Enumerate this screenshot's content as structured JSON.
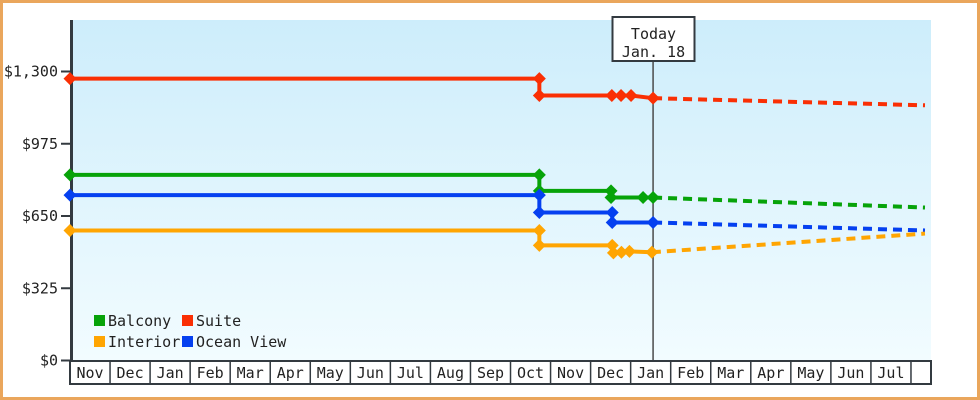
{
  "colors": {
    "frame_border": "#eaa65c",
    "plot_bg_top": "#cdedfb",
    "plot_bg_bottom": "#f2fcff",
    "axis": "#333a40",
    "text": "#222222",
    "today_line": "#4a4a4a",
    "box_bg": "#ffffff"
  },
  "chart_data": {
    "type": "line",
    "title": "",
    "grid": false,
    "y_axis": {
      "ticks": [
        {
          "label": "$0",
          "value": 0
        },
        {
          "label": "$325",
          "value": 325
        },
        {
          "label": "$650",
          "value": 650
        },
        {
          "label": "$975",
          "value": 975
        },
        {
          "label": "$1,300",
          "value": 1300
        }
      ],
      "range": [
        0,
        1530
      ]
    },
    "x_axis": {
      "unit": "month",
      "labels": [
        "Nov",
        "Dec",
        "Jan",
        "Feb",
        "Mar",
        "Apr",
        "May",
        "Jun",
        "Jul",
        "Aug",
        "Sep",
        "Oct",
        "Nov",
        "Dec",
        "Jan",
        "Feb",
        "Mar",
        "Apr",
        "May",
        "Jun",
        "Jul"
      ]
    },
    "today": {
      "line1": "Today",
      "line2": "Jan. 18",
      "month_offset": 14.56
    },
    "legend": {
      "position": "bottom-left",
      "rows": [
        [
          "Balcony",
          "Suite"
        ],
        [
          "Interior",
          "Ocean View"
        ]
      ]
    },
    "series": [
      {
        "name": "Suite",
        "color": "#fa2f04",
        "history": [
          [
            0,
            1268
          ],
          [
            11.72,
            1268
          ],
          [
            11.72,
            1192
          ],
          [
            13.53,
            1192
          ],
          [
            13.76,
            1192
          ],
          [
            14.01,
            1192
          ],
          [
            14.56,
            1180
          ]
        ],
        "forecast": [
          [
            14.56,
            1180
          ],
          [
            21.35,
            1148
          ]
        ]
      },
      {
        "name": "Balcony",
        "color": "#07a309",
        "history": [
          [
            0,
            835
          ],
          [
            11.72,
            835
          ],
          [
            11.72,
            763
          ],
          [
            13.51,
            763
          ],
          [
            13.51,
            733
          ],
          [
            14.31,
            733
          ],
          [
            14.56,
            733
          ]
        ],
        "forecast": [
          [
            14.56,
            733
          ],
          [
            21.35,
            688
          ]
        ]
      },
      {
        "name": "Ocean View",
        "color": "#0540f0",
        "history": [
          [
            0,
            744
          ],
          [
            11.72,
            744
          ],
          [
            11.72,
            666
          ],
          [
            13.54,
            666
          ],
          [
            13.54,
            621
          ],
          [
            14.56,
            621
          ]
        ],
        "forecast": [
          [
            14.56,
            621
          ],
          [
            21.35,
            585
          ]
        ]
      },
      {
        "name": "Interior",
        "color": "#ffa502",
        "history": [
          [
            0,
            585
          ],
          [
            11.72,
            585
          ],
          [
            11.72,
            518
          ],
          [
            13.54,
            518
          ],
          [
            13.57,
            484
          ],
          [
            13.77,
            487
          ],
          [
            13.97,
            491
          ],
          [
            14.53,
            487
          ]
        ],
        "forecast": [
          [
            14.53,
            487
          ],
          [
            21.35,
            571
          ]
        ]
      }
    ]
  }
}
